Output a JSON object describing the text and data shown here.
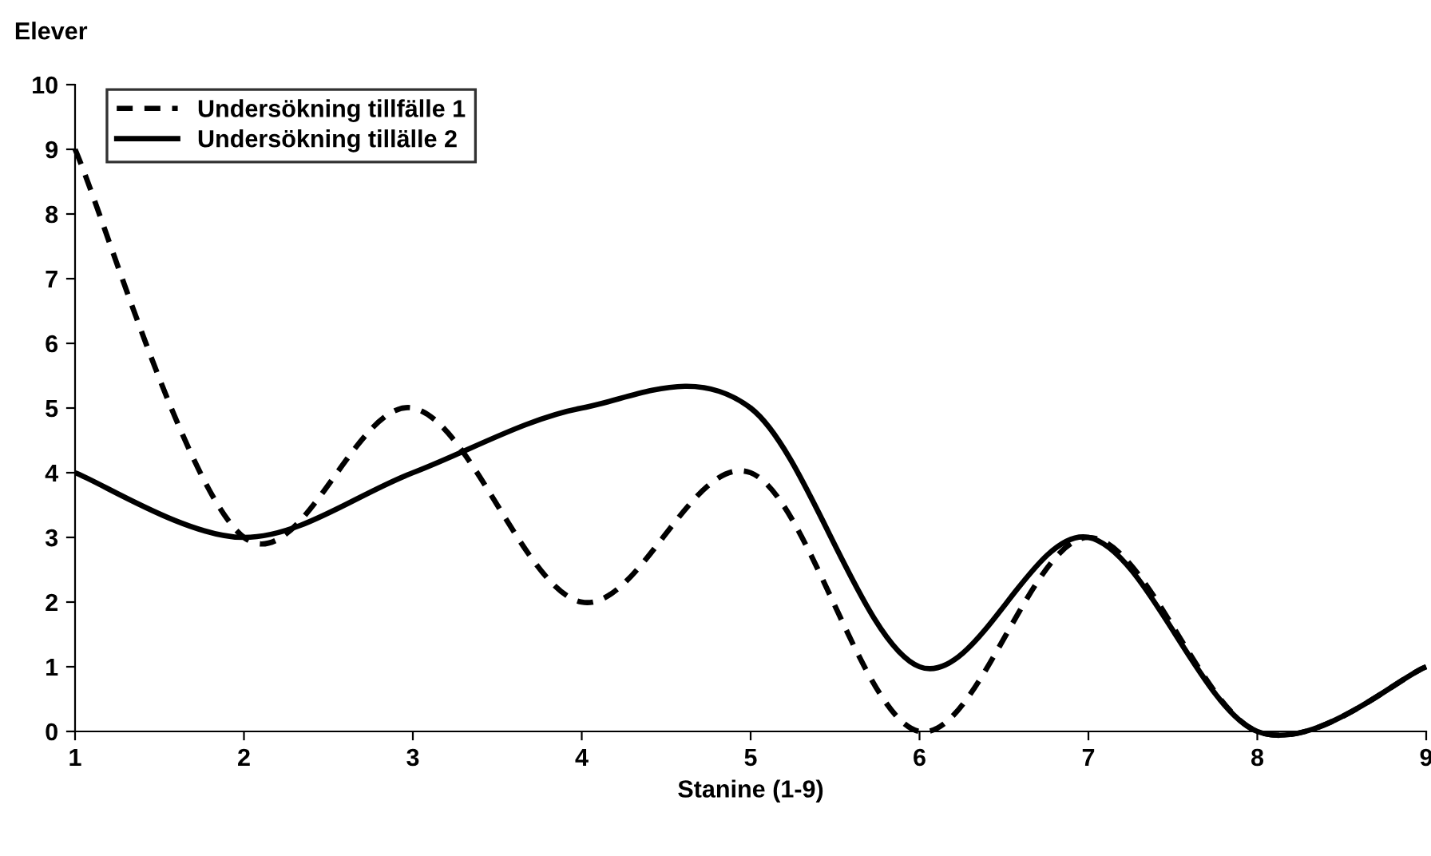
{
  "chart_data": {
    "type": "line",
    "xlabel": "Stanine (1-9)",
    "ylabel": "Elever",
    "x": [
      1,
      2,
      3,
      4,
      5,
      6,
      7,
      8,
      9
    ],
    "series": [
      {
        "name": "Undersökning tillfälle 1",
        "color": "#000000",
        "line_style": "dashed",
        "values": [
          9,
          3,
          5,
          2,
          4,
          0,
          3,
          0,
          1
        ]
      },
      {
        "name": "Undersökning tillälle 2",
        "color": "#000000",
        "line_style": "solid",
        "values": [
          4,
          3,
          4,
          5,
          5,
          1,
          3,
          0,
          1
        ]
      }
    ],
    "xlim": [
      1,
      9
    ],
    "xticks": [
      1,
      2,
      3,
      4,
      5,
      6,
      7,
      8,
      9
    ],
    "ylim": [
      0,
      10
    ],
    "yticks": [
      0,
      1,
      2,
      3,
      4,
      5,
      6,
      7,
      8,
      9,
      10
    ],
    "grid": false,
    "legend": "top left",
    "marker": "none"
  }
}
